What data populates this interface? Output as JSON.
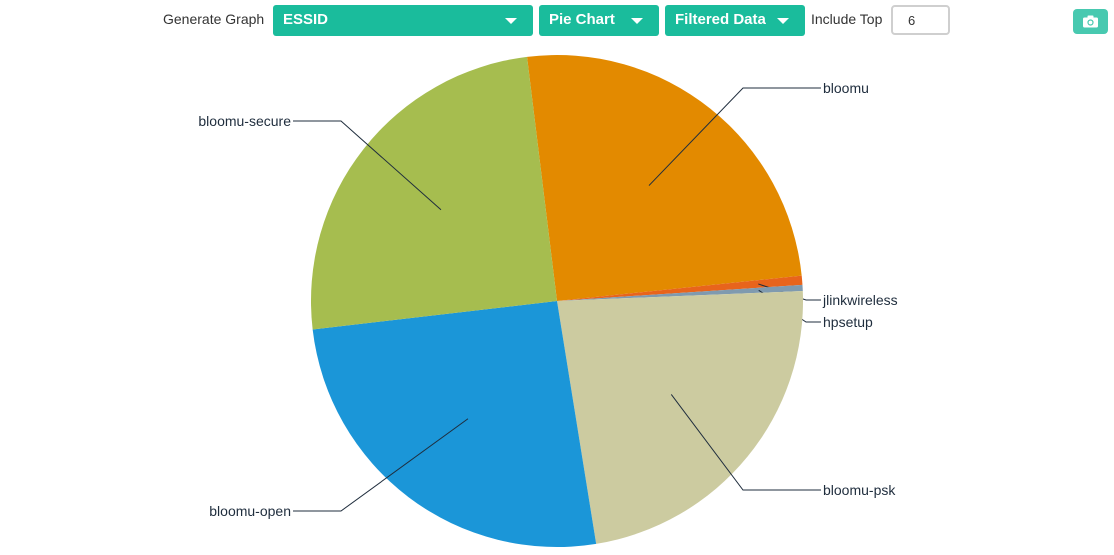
{
  "toolbar": {
    "generate_label": "Generate Graph",
    "field_select": "ESSID",
    "chart_type_select": "Pie Chart",
    "data_select": "Filtered Data",
    "include_top_label": "Include Top",
    "include_top_value": "6",
    "camera_icon": "camera-icon"
  },
  "colors": {
    "control_bg": "#1abc9c",
    "camera_bg": "#48c9b0"
  },
  "chart_data": {
    "type": "pie",
    "title": "",
    "slices": [
      {
        "label": "bloomu",
        "value": 25.3,
        "color": "#e38a00"
      },
      {
        "label": "jlinkwireless",
        "value": 0.6,
        "color": "#e8641c"
      },
      {
        "label": "hpsetup",
        "value": 0.4,
        "color": "#7f9aaf"
      },
      {
        "label": "bloomu-psk",
        "value": 23.1,
        "color": "#cccba0"
      },
      {
        "label": "bloomu-open",
        "value": 25.7,
        "color": "#1b96d8"
      },
      {
        "label": "bloomu-secure",
        "value": 24.9,
        "color": "#a6bd4f"
      }
    ]
  }
}
